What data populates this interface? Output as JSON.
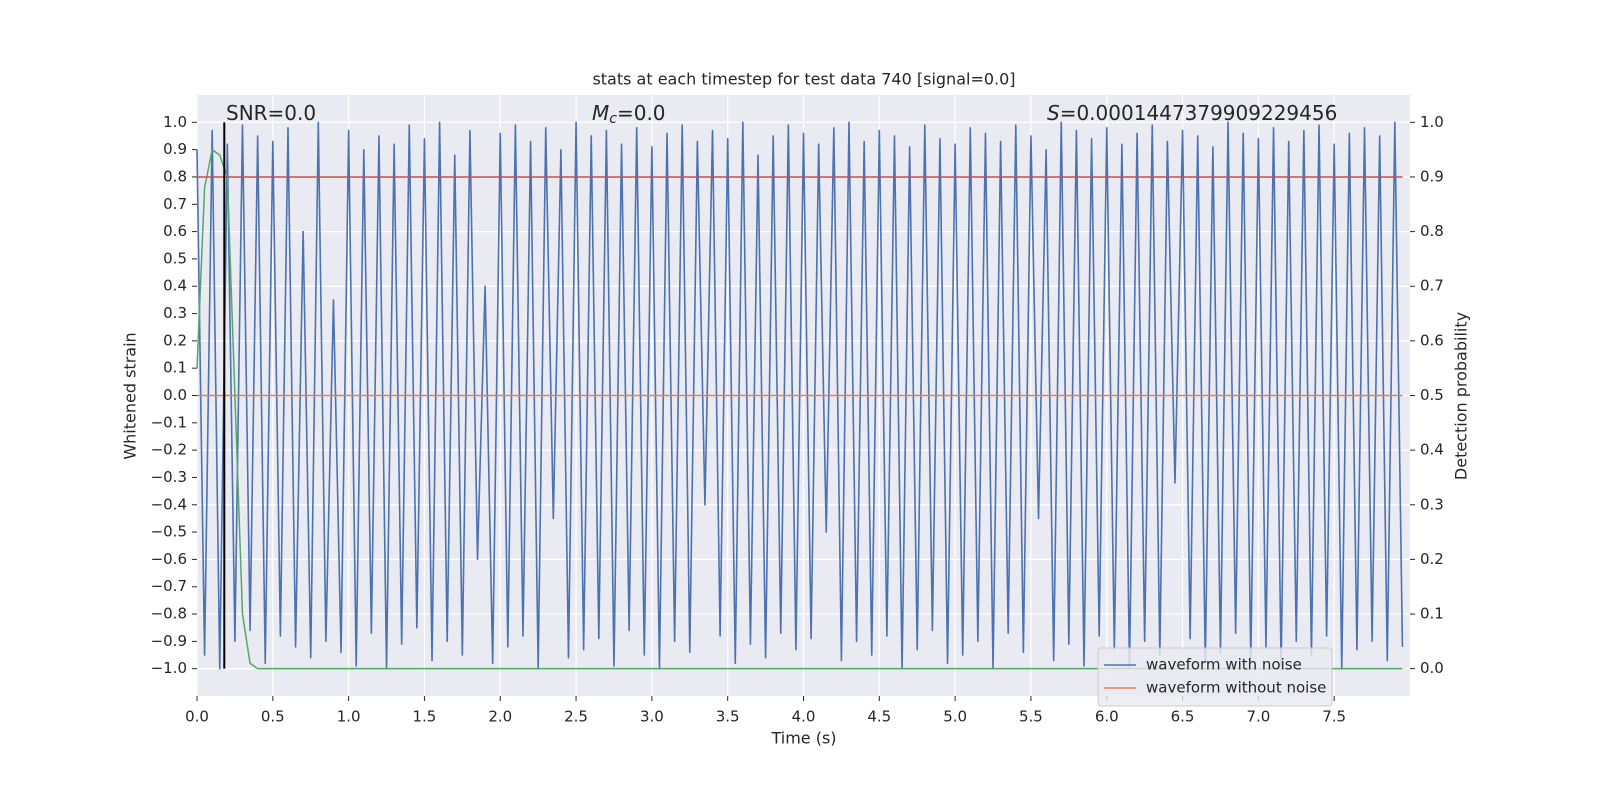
{
  "chart_data": {
    "type": "line",
    "title": "stats at each timestep for test data 740 [signal=0.0]",
    "x_label": "Time (s)",
    "y_label": "Whitened strain",
    "y2_label": "Detection probability",
    "annotations": [
      {
        "text": "SNR=0.0"
      },
      {
        "symbol": "M",
        "subscript": "c",
        "text": "=0.0"
      },
      {
        "symbol": "S",
        "text": "=0.0001447379909229456"
      }
    ],
    "xlim": [
      0,
      8
    ],
    "ylim": [
      -1.1,
      1.1
    ],
    "y2lim": [
      -0.05,
      1.05
    ],
    "xticks": [
      {
        "value": 0,
        "label": "0.0"
      },
      0.5,
      {
        "value": 1,
        "label": "1.0"
      },
      1.5,
      {
        "value": 2,
        "label": "2.0"
      },
      2.5,
      {
        "value": 3,
        "label": "3.0"
      },
      3.5,
      {
        "value": 4,
        "label": "4.0"
      },
      4.5,
      {
        "value": 5,
        "label": "5.0"
      },
      5.5,
      {
        "value": 6,
        "label": "6.0"
      },
      6.5,
      {
        "value": 7,
        "label": "7.0"
      },
      7.5
    ],
    "yticks": [
      {
        "value": 1,
        "label": "1.0"
      },
      0.9,
      0.8,
      0.7,
      0.6,
      0.5,
      0.4,
      0.3,
      0.2,
      0.1,
      {
        "value": 0,
        "label": "0.0"
      },
      {
        "value": -0.1,
        "label": "−0.1"
      },
      {
        "value": -0.2,
        "label": "−0.2"
      },
      {
        "value": -0.3,
        "label": "−0.3"
      },
      {
        "value": -0.4,
        "label": "−0.4"
      },
      {
        "value": -0.5,
        "label": "−0.5"
      },
      {
        "value": -0.6,
        "label": "−0.6"
      },
      {
        "value": -0.7,
        "label": "−0.7"
      },
      {
        "value": -0.8,
        "label": "−0.8"
      },
      {
        "value": -0.9,
        "label": "−0.9"
      },
      {
        "value": -1,
        "label": "−1.0"
      }
    ],
    "y2ticks": [
      {
        "value": 1,
        "label": "1.0"
      },
      0.9,
      0.8,
      0.7,
      0.6,
      0.5,
      0.4,
      0.3,
      0.2,
      0.1,
      {
        "value": 0,
        "label": "0.0"
      }
    ],
    "grid": true,
    "background": "#eaeaf2",
    "legend": "lower right",
    "vline": {
      "x": 0.18,
      "ymin": -1,
      "ymax": 1,
      "color": "#000000"
    },
    "series": [
      {
        "name": "waveform with noise",
        "color": "#4c72b0",
        "x": [
          0,
          0.05,
          0.1,
          0.15,
          0.2,
          0.25,
          0.3,
          0.35,
          0.4,
          0.45,
          0.5,
          0.55,
          0.6,
          0.65,
          0.7,
          0.75,
          0.8,
          0.85,
          0.9,
          0.95,
          1,
          1.05,
          1.1,
          1.15,
          1.2,
          1.25,
          1.3,
          1.35,
          1.4,
          1.45,
          1.5,
          1.55,
          1.6,
          1.65,
          1.7,
          1.75,
          1.8,
          1.85,
          1.9,
          1.95,
          2,
          2.05,
          2.1,
          2.15,
          2.2,
          2.25,
          2.3,
          2.35,
          2.4,
          2.45,
          2.5,
          2.55,
          2.6,
          2.65,
          2.7,
          2.75,
          2.8,
          2.85,
          2.9,
          2.95,
          3,
          3.05,
          3.1,
          3.15,
          3.2,
          3.25,
          3.3,
          3.35,
          3.4,
          3.45,
          3.5,
          3.55,
          3.6,
          3.65,
          3.7,
          3.75,
          3.8,
          3.85,
          3.9,
          3.95,
          4,
          4.05,
          4.1,
          4.15,
          4.2,
          4.25,
          4.3,
          4.35,
          4.4,
          4.45,
          4.5,
          4.55,
          4.6,
          4.65,
          4.7,
          4.75,
          4.8,
          4.85,
          4.9,
          4.95,
          5,
          5.05,
          5.1,
          5.15,
          5.2,
          5.25,
          5.3,
          5.35,
          5.4,
          5.45,
          5.5,
          5.55,
          5.6,
          5.65,
          5.7,
          5.75,
          5.8,
          5.85,
          5.9,
          5.95,
          6,
          6.05,
          6.1,
          6.15,
          6.2,
          6.25,
          6.3,
          6.35,
          6.4,
          6.45,
          6.5,
          6.55,
          6.6,
          6.65,
          6.7,
          6.75,
          6.8,
          6.85,
          6.9,
          6.95,
          7,
          7.05,
          7.1,
          7.15,
          7.2,
          7.25,
          7.3,
          7.35,
          7.4,
          7.45,
          7.5,
          7.55,
          7.6,
          7.65,
          7.7,
          7.75,
          7.8,
          7.85,
          7.9,
          7.95
        ],
        "values": [
          0.9,
          -0.95,
          0.97,
          -1.0,
          0.92,
          -0.9,
          0.99,
          -0.86,
          0.95,
          -0.98,
          0.93,
          -0.88,
          0.98,
          -0.92,
          0.6,
          -0.96,
          1.0,
          -0.9,
          0.35,
          -0.94,
          0.97,
          -0.99,
          0.9,
          -0.87,
          0.95,
          -1.0,
          0.92,
          -0.91,
          0.99,
          -0.85,
          0.94,
          -0.97,
          1.0,
          -0.9,
          0.88,
          -0.95,
          0.97,
          -0.6,
          0.4,
          -0.98,
          0.96,
          -0.92,
          0.99,
          -0.88,
          0.93,
          -1.0,
          0.98,
          -0.45,
          0.9,
          -0.96,
          1.0,
          -0.93,
          0.95,
          -0.89,
          0.97,
          -0.99,
          0.92,
          -0.86,
          0.98,
          -0.95,
          0.91,
          -1.0,
          0.96,
          -0.9,
          0.99,
          -0.94,
          0.93,
          -0.4,
          0.97,
          -0.88,
          0.94,
          -0.98,
          1.0,
          -0.91,
          0.88,
          -0.96,
          0.95,
          -0.87,
          0.99,
          -0.93,
          0.96,
          -0.89,
          0.92,
          -0.5,
          0.98,
          -0.97,
          1.0,
          -0.9,
          0.93,
          -0.95,
          0.97,
          -0.88,
          0.95,
          -1.0,
          0.91,
          -0.93,
          0.99,
          -0.86,
          0.94,
          -0.98,
          0.92,
          -0.95,
          0.98,
          -0.9,
          0.96,
          -1.0,
          0.93,
          -0.87,
          0.99,
          -0.94,
          0.95,
          -0.45,
          0.9,
          -0.97,
          1.0,
          -0.91,
          0.97,
          -0.99,
          0.94,
          -0.88,
          0.98,
          -0.93,
          0.92,
          -1.0,
          0.96,
          -0.9,
          0.99,
          -0.95,
          0.93,
          -0.32,
          0.97,
          -0.89,
          0.95,
          -0.98,
          0.91,
          -0.94,
          1.0,
          -0.87,
          0.96,
          -0.97,
          0.94,
          -0.92,
          0.98,
          -0.99,
          0.93,
          -0.9,
          0.97,
          -0.95,
          0.99,
          -0.88,
          0.92,
          -1.0,
          0.96,
          -0.93,
          0.98,
          -0.9,
          0.95,
          -0.97,
          1.0,
          -0.92
        ]
      },
      {
        "name": "waveform without noise",
        "color": "#dd8452",
        "x": [
          0,
          7.95
        ],
        "values": [
          0,
          0
        ]
      },
      {
        "color": "#55a868",
        "axis": "y2",
        "x": [
          0,
          0.05,
          0.1,
          0.15,
          0.2,
          0.25,
          0.3,
          0.35,
          0.4,
          7.95
        ],
        "values": [
          0.55,
          0.88,
          0.95,
          0.94,
          0.9,
          0.5,
          0.1,
          0.01,
          0,
          0
        ]
      },
      {
        "color": "#c44e52",
        "axis": "y2",
        "x": [
          0,
          7.95
        ],
        "values": [
          0.9,
          0.9
        ]
      }
    ]
  }
}
